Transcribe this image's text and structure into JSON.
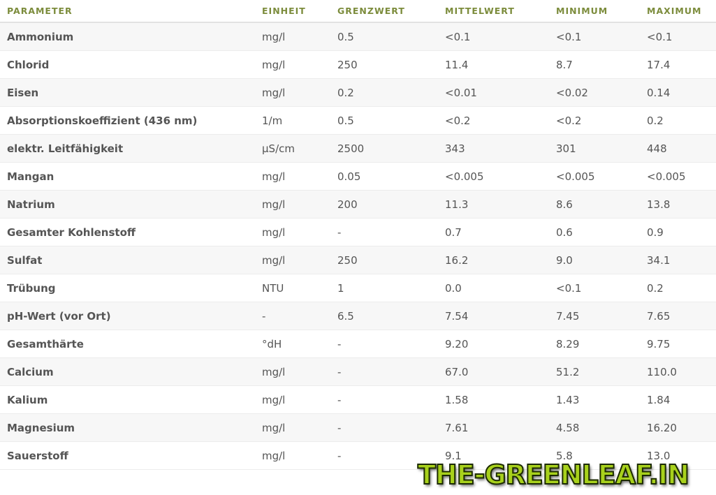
{
  "columns": [
    "PARAMETER",
    "EINHEIT",
    "GRENZWERT",
    "MITTELWERT",
    "MINIMUM",
    "MAXIMUM"
  ],
  "rows": [
    [
      "Ammonium",
      "mg/l",
      "0.5",
      "<0.1",
      "<0.1",
      "<0.1"
    ],
    [
      "Chlorid",
      "mg/l",
      "250",
      "11.4",
      "8.7",
      "17.4"
    ],
    [
      "Eisen",
      "mg/l",
      "0.2",
      "<0.01",
      "<0.02",
      "0.14"
    ],
    [
      "Absorptionskoeffizient (436 nm)",
      "1/m",
      "0.5",
      "<0.2",
      "<0.2",
      "0.2"
    ],
    [
      "elektr. Leitfähigkeit",
      "µS/cm",
      "2500",
      "343",
      "301",
      "448"
    ],
    [
      "Mangan",
      "mg/l",
      "0.05",
      "<0.005",
      "<0.005",
      "<0.005"
    ],
    [
      "Natrium",
      "mg/l",
      "200",
      "11.3",
      "8.6",
      "13.8"
    ],
    [
      "Gesamter Kohlenstoff",
      "mg/l",
      "-",
      "0.7",
      "0.6",
      "0.9"
    ],
    [
      "Sulfat",
      "mg/l",
      "250",
      "16.2",
      "9.0",
      "34.1"
    ],
    [
      "Trübung",
      "NTU",
      "1",
      "0.0",
      "<0.1",
      "0.2"
    ],
    [
      "pH-Wert (vor Ort)",
      "-",
      "6.5",
      "7.54",
      "7.45",
      "7.65"
    ],
    [
      "Gesamthärte",
      "°dH",
      "-",
      "9.20",
      "8.29",
      "9.75"
    ],
    [
      "Calcium",
      "mg/l",
      "-",
      "67.0",
      "51.2",
      "110.0"
    ],
    [
      "Kalium",
      "mg/l",
      "-",
      "1.58",
      "1.43",
      "1.84"
    ],
    [
      "Magnesium",
      "mg/l",
      "-",
      "7.61",
      "4.58",
      "16.20"
    ],
    [
      "Sauerstoff",
      "mg/l",
      "-",
      "9.1",
      "5.8",
      "13.0"
    ]
  ],
  "watermark": "THE-GREENLEAF.IN",
  "colors": {
    "header": "#7c8c3c",
    "stripe": "#f7f7f7",
    "watermark": "#a8d11c"
  }
}
